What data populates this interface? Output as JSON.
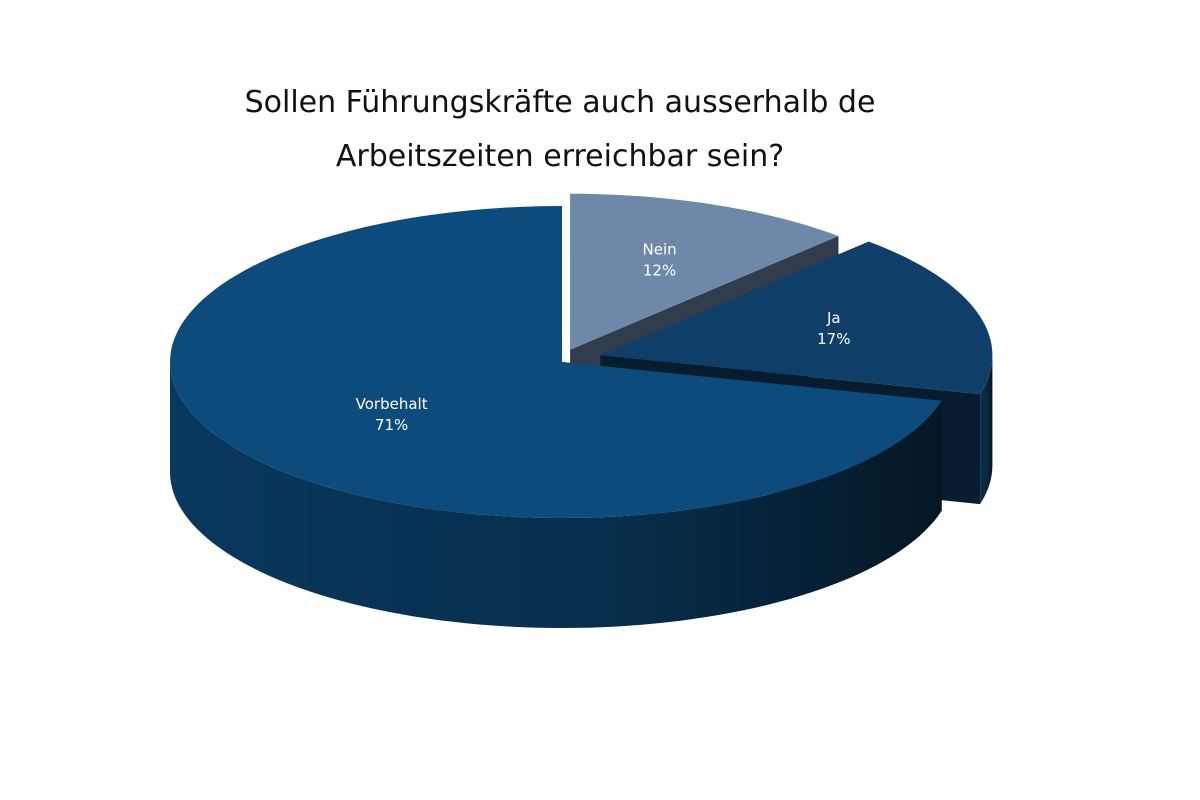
{
  "chart_data": {
    "type": "pie",
    "title": [
      "Sollen Führungskräfte auch ausserhalb de",
      "Arbeitszeiten erreichbar sein?"
    ],
    "categories": [
      "Nein",
      "Ja",
      "Vorbehalt"
    ],
    "values": [
      12,
      17,
      71
    ],
    "value_labels": [
      "12%",
      "17%",
      "71%"
    ],
    "colors": [
      "#6d88a8",
      "#0f3f68",
      "#0c4b7c"
    ]
  }
}
